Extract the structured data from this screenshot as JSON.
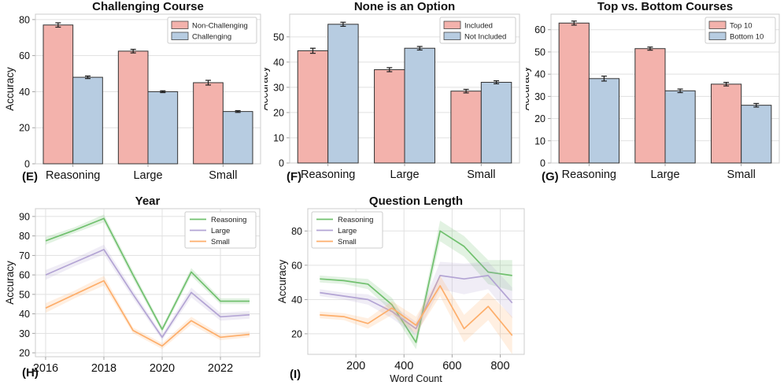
{
  "colors": {
    "bar_red": "#f3b2ac",
    "bar_blue": "#b7cce1",
    "bar_edge": "#333333",
    "error_bar": "#1c1c1c",
    "line_green": "#70c06e",
    "line_purple": "#b3a4d4",
    "line_orange": "#fdae6b",
    "grid": "#e1e1e1",
    "spine": "#cccccc",
    "tick": "#999999",
    "text": "#111111"
  },
  "chart_data": [
    {
      "id": "E",
      "panel_label": "(E)",
      "type": "bar",
      "title": "Challenging Course",
      "ylabel": "Accuracy",
      "categories": [
        "Reasoning",
        "Large",
        "Small"
      ],
      "series": [
        {
          "name": "Non-Challenging",
          "color_key": "bar_red",
          "values": [
            77,
            62.5,
            45
          ],
          "errors": [
            1.2,
            1.0,
            1.3
          ]
        },
        {
          "name": "Challenging",
          "color_key": "bar_blue",
          "values": [
            48,
            40,
            29
          ],
          "errors": [
            0.7,
            0.5,
            0.5
          ]
        }
      ],
      "yticks": [
        0,
        20,
        40,
        60,
        80
      ],
      "ylim": [
        0,
        83
      ],
      "grid": true,
      "legend_pos": "top-right"
    },
    {
      "id": "F",
      "panel_label": "(F)",
      "type": "bar",
      "title": "None is an Option",
      "ylabel": "Accuracy",
      "categories": [
        "Reasoning",
        "Large",
        "Small"
      ],
      "series": [
        {
          "name": "Included",
          "color_key": "bar_red",
          "values": [
            44.5,
            37,
            28.5
          ],
          "errors": [
            1.0,
            0.8,
            0.7
          ]
        },
        {
          "name": "Not Included",
          "color_key": "bar_blue",
          "values": [
            55,
            45.5,
            32
          ],
          "errors": [
            0.8,
            0.7,
            0.6
          ]
        }
      ],
      "yticks": [
        0,
        10,
        20,
        30,
        40,
        50
      ],
      "ylim": [
        0,
        59
      ],
      "grid": true,
      "legend_pos": "top-right"
    },
    {
      "id": "G",
      "panel_label": "(G)",
      "type": "bar",
      "title": "Top vs. Bottom Courses",
      "ylabel": "Accuracy",
      "categories": [
        "Reasoning",
        "Large",
        "Small"
      ],
      "series": [
        {
          "name": "Top 10",
          "color_key": "bar_red",
          "values": [
            63,
            51.5,
            35.5
          ],
          "errors": [
            0.9,
            0.7,
            0.8
          ]
        },
        {
          "name": "Bottom 10",
          "color_key": "bar_blue",
          "values": [
            38,
            32.5,
            26
          ],
          "errors": [
            1.1,
            0.8,
            0.8
          ]
        }
      ],
      "yticks": [
        0,
        10,
        20,
        30,
        40,
        50,
        60
      ],
      "ylim": [
        0,
        67
      ],
      "grid": true,
      "legend_pos": "top-right"
    },
    {
      "id": "H",
      "panel_label": "(H)",
      "type": "line",
      "title": "Year",
      "ylabel": "Accuracy",
      "xlabel": "",
      "x": [
        2016,
        2017,
        2018,
        2019,
        2020,
        2021,
        2022,
        2023
      ],
      "xticks": [
        2016,
        2018,
        2020,
        2022
      ],
      "xtick_labels": [
        "2016",
        "2018",
        "2020",
        "2022"
      ],
      "series": [
        {
          "name": "Reasoning",
          "color_key": "line_green",
          "values": [
            77.5,
            83,
            89,
            60,
            32,
            61.5,
            46.5,
            46.5
          ],
          "band": [
            2,
            1.5,
            2,
            2,
            1.5,
            2,
            1.5,
            1.5
          ]
        },
        {
          "name": "Large",
          "color_key": "line_purple",
          "values": [
            60,
            66.5,
            73,
            50,
            28,
            51,
            38.5,
            39.5
          ],
          "band": [
            2.5,
            2,
            2.5,
            2,
            1.5,
            2.5,
            2,
            2
          ]
        },
        {
          "name": "Small",
          "color_key": "line_orange",
          "values": [
            43,
            50,
            57,
            31.5,
            23.5,
            36.5,
            28,
            29.5
          ],
          "band": [
            2.5,
            2,
            2.5,
            1.5,
            1.5,
            2,
            1.5,
            1.5
          ]
        }
      ],
      "yticks": [
        20,
        30,
        40,
        50,
        60,
        70,
        80,
        90
      ],
      "ylim": [
        18,
        94
      ],
      "xlim": [
        2015.65,
        2023.35
      ],
      "grid": true,
      "legend_pos": "top-right"
    },
    {
      "id": "I",
      "panel_label": "(I)",
      "type": "line",
      "title": "Question Length",
      "ylabel": "Accuracy",
      "xlabel": "Word Count",
      "x": [
        50,
        150,
        250,
        350,
        450,
        550,
        650,
        750,
        850
      ],
      "xticks": [
        200,
        400,
        600,
        800
      ],
      "xtick_labels": [
        "200",
        "400",
        "600",
        "800"
      ],
      "series": [
        {
          "name": "Reasoning",
          "color_key": "line_green",
          "values": [
            52,
            51,
            49,
            37,
            15,
            80,
            71,
            56,
            54
          ],
          "band": [
            2,
            2,
            3,
            4,
            4,
            6,
            6,
            7,
            9
          ]
        },
        {
          "name": "Large",
          "color_key": "line_purple",
          "values": [
            44,
            42,
            40,
            33,
            23,
            54,
            52,
            54,
            38
          ],
          "band": [
            2,
            2,
            3,
            4,
            4,
            8,
            9,
            8,
            9
          ]
        },
        {
          "name": "Small",
          "color_key": "line_orange",
          "values": [
            31,
            30,
            26,
            35,
            25,
            48,
            23,
            36,
            19
          ],
          "band": [
            2,
            2,
            3,
            4,
            5,
            6,
            8,
            8,
            11
          ]
        }
      ],
      "yticks": [
        20,
        40,
        60,
        80
      ],
      "ylim": [
        8,
        93
      ],
      "xlim": [
        0,
        900
      ],
      "grid": true,
      "legend_pos": "top-left"
    }
  ]
}
